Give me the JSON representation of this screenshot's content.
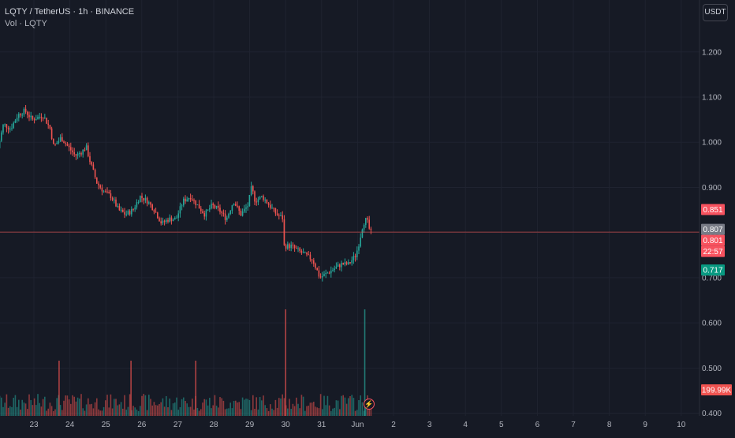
{
  "header": {
    "symbol_line": "LQTY / TetherUS · 1h · BINANCE",
    "volume_line": "Vol · LQTY"
  },
  "toolbar": {
    "currency_label": "USDT"
  },
  "colors": {
    "background": "#161a25",
    "up": "#26a69a",
    "down": "#ef5350",
    "grid": "#1f2330",
    "axis_text": "#b2b5be",
    "stop_zone": "#5c2a33",
    "target_zone": "#1d3f3c",
    "last_price_line": "#ef5350"
  },
  "icons": {
    "bolt_button": "lightning-icon"
  },
  "chart_data": {
    "type": "candlestick",
    "symbol": "LQTY/USDT",
    "interval": "1h",
    "exchange": "BINANCE",
    "x_ticks": [
      "23",
      "24",
      "25",
      "26",
      "27",
      "28",
      "29",
      "30",
      "31",
      "Jun",
      "2",
      "3",
      "4",
      "5",
      "6",
      "7",
      "8",
      "9",
      "10"
    ],
    "y_ticks": [
      "1.200",
      "1.100",
      "1.000",
      "0.900",
      "0.800",
      "0.700",
      "0.600",
      "0.500",
      "0.400"
    ],
    "ylim": [
      0.38,
      1.28
    ],
    "price_path": [
      [
        "22",
        0.97
      ],
      [
        "22.2",
        1.04
      ],
      [
        "22.4",
        1.03
      ],
      [
        "22.6",
        1.06
      ],
      [
        "22.8",
        1.07
      ],
      [
        "23",
        1.05
      ],
      [
        "23.3",
        1.06
      ],
      [
        "23.5",
        1.03
      ],
      [
        "23.6",
        0.99
      ],
      [
        "23.8",
        1.01
      ],
      [
        "24",
        0.99
      ],
      [
        "24.2",
        0.97
      ],
      [
        "24.4",
        0.98
      ],
      [
        "24.5",
        0.99
      ],
      [
        "24.6",
        0.96
      ],
      [
        "24.8",
        0.91
      ],
      [
        "25",
        0.89
      ],
      [
        "25.2",
        0.88
      ],
      [
        "25.4",
        0.85
      ],
      [
        "25.6",
        0.84
      ],
      [
        "25.8",
        0.85
      ],
      [
        "26",
        0.88
      ],
      [
        "26.2",
        0.87
      ],
      [
        "26.4",
        0.85
      ],
      [
        "26.6",
        0.82
      ],
      [
        "26.8",
        0.83
      ],
      [
        "27",
        0.83
      ],
      [
        "27.2",
        0.87
      ],
      [
        "27.4",
        0.88
      ],
      [
        "27.6",
        0.86
      ],
      [
        "27.8",
        0.84
      ],
      [
        "28",
        0.86
      ],
      [
        "28.2",
        0.85
      ],
      [
        "28.4",
        0.83
      ],
      [
        "28.6",
        0.87
      ],
      [
        "28.8",
        0.84
      ],
      [
        "29",
        0.86
      ],
      [
        "29.1",
        0.9
      ],
      [
        "29.2",
        0.87
      ],
      [
        "29.4",
        0.88
      ],
      [
        "29.6",
        0.86
      ],
      [
        "29.8",
        0.84
      ],
      [
        "30",
        0.83
      ],
      [
        "30",
        0.77
      ],
      [
        "30.2",
        0.77
      ],
      [
        "30.4",
        0.76
      ],
      [
        "30.6",
        0.75
      ],
      [
        "30.8",
        0.74
      ],
      [
        "30.9",
        0.72
      ],
      [
        "31",
        0.7
      ],
      [
        "31.2",
        0.71
      ],
      [
        "31.4",
        0.72
      ],
      [
        "31.6",
        0.73
      ],
      [
        "31.8",
        0.73
      ],
      [
        "32",
        0.75
      ],
      [
        "32.1",
        0.78
      ],
      [
        "32.2",
        0.82
      ],
      [
        "32.3",
        0.83
      ],
      [
        "32.4",
        0.8
      ]
    ],
    "volume_bars": [
      {
        "x": "30",
        "v": "spike",
        "color": "down"
      },
      {
        "x": "32.2",
        "v": "spike",
        "color": "up"
      },
      {
        "x": "23.7",
        "v": "high",
        "color": "down"
      },
      {
        "x": "25.7",
        "v": "high",
        "color": "down"
      },
      {
        "x": "27.5",
        "v": "high",
        "color": "down"
      }
    ],
    "position_tool": {
      "entry": 0.807,
      "stop": 0.851,
      "target": 0.717,
      "x_start": "2.4",
      "x_end": "5"
    },
    "price_labels": [
      {
        "value": 0.851,
        "text": "0.851",
        "color": "#f7525f"
      },
      {
        "value": 0.807,
        "text": "0.807",
        "color": "#787b86"
      },
      {
        "value": 0.801,
        "text": "0.801",
        "color": "#f7525f"
      },
      {
        "value": 0.717,
        "text": "0.717",
        "color": "#089981"
      }
    ],
    "countdown": "22:57",
    "last_price": 0.801,
    "volume_label": "199.99K",
    "grid": true
  }
}
